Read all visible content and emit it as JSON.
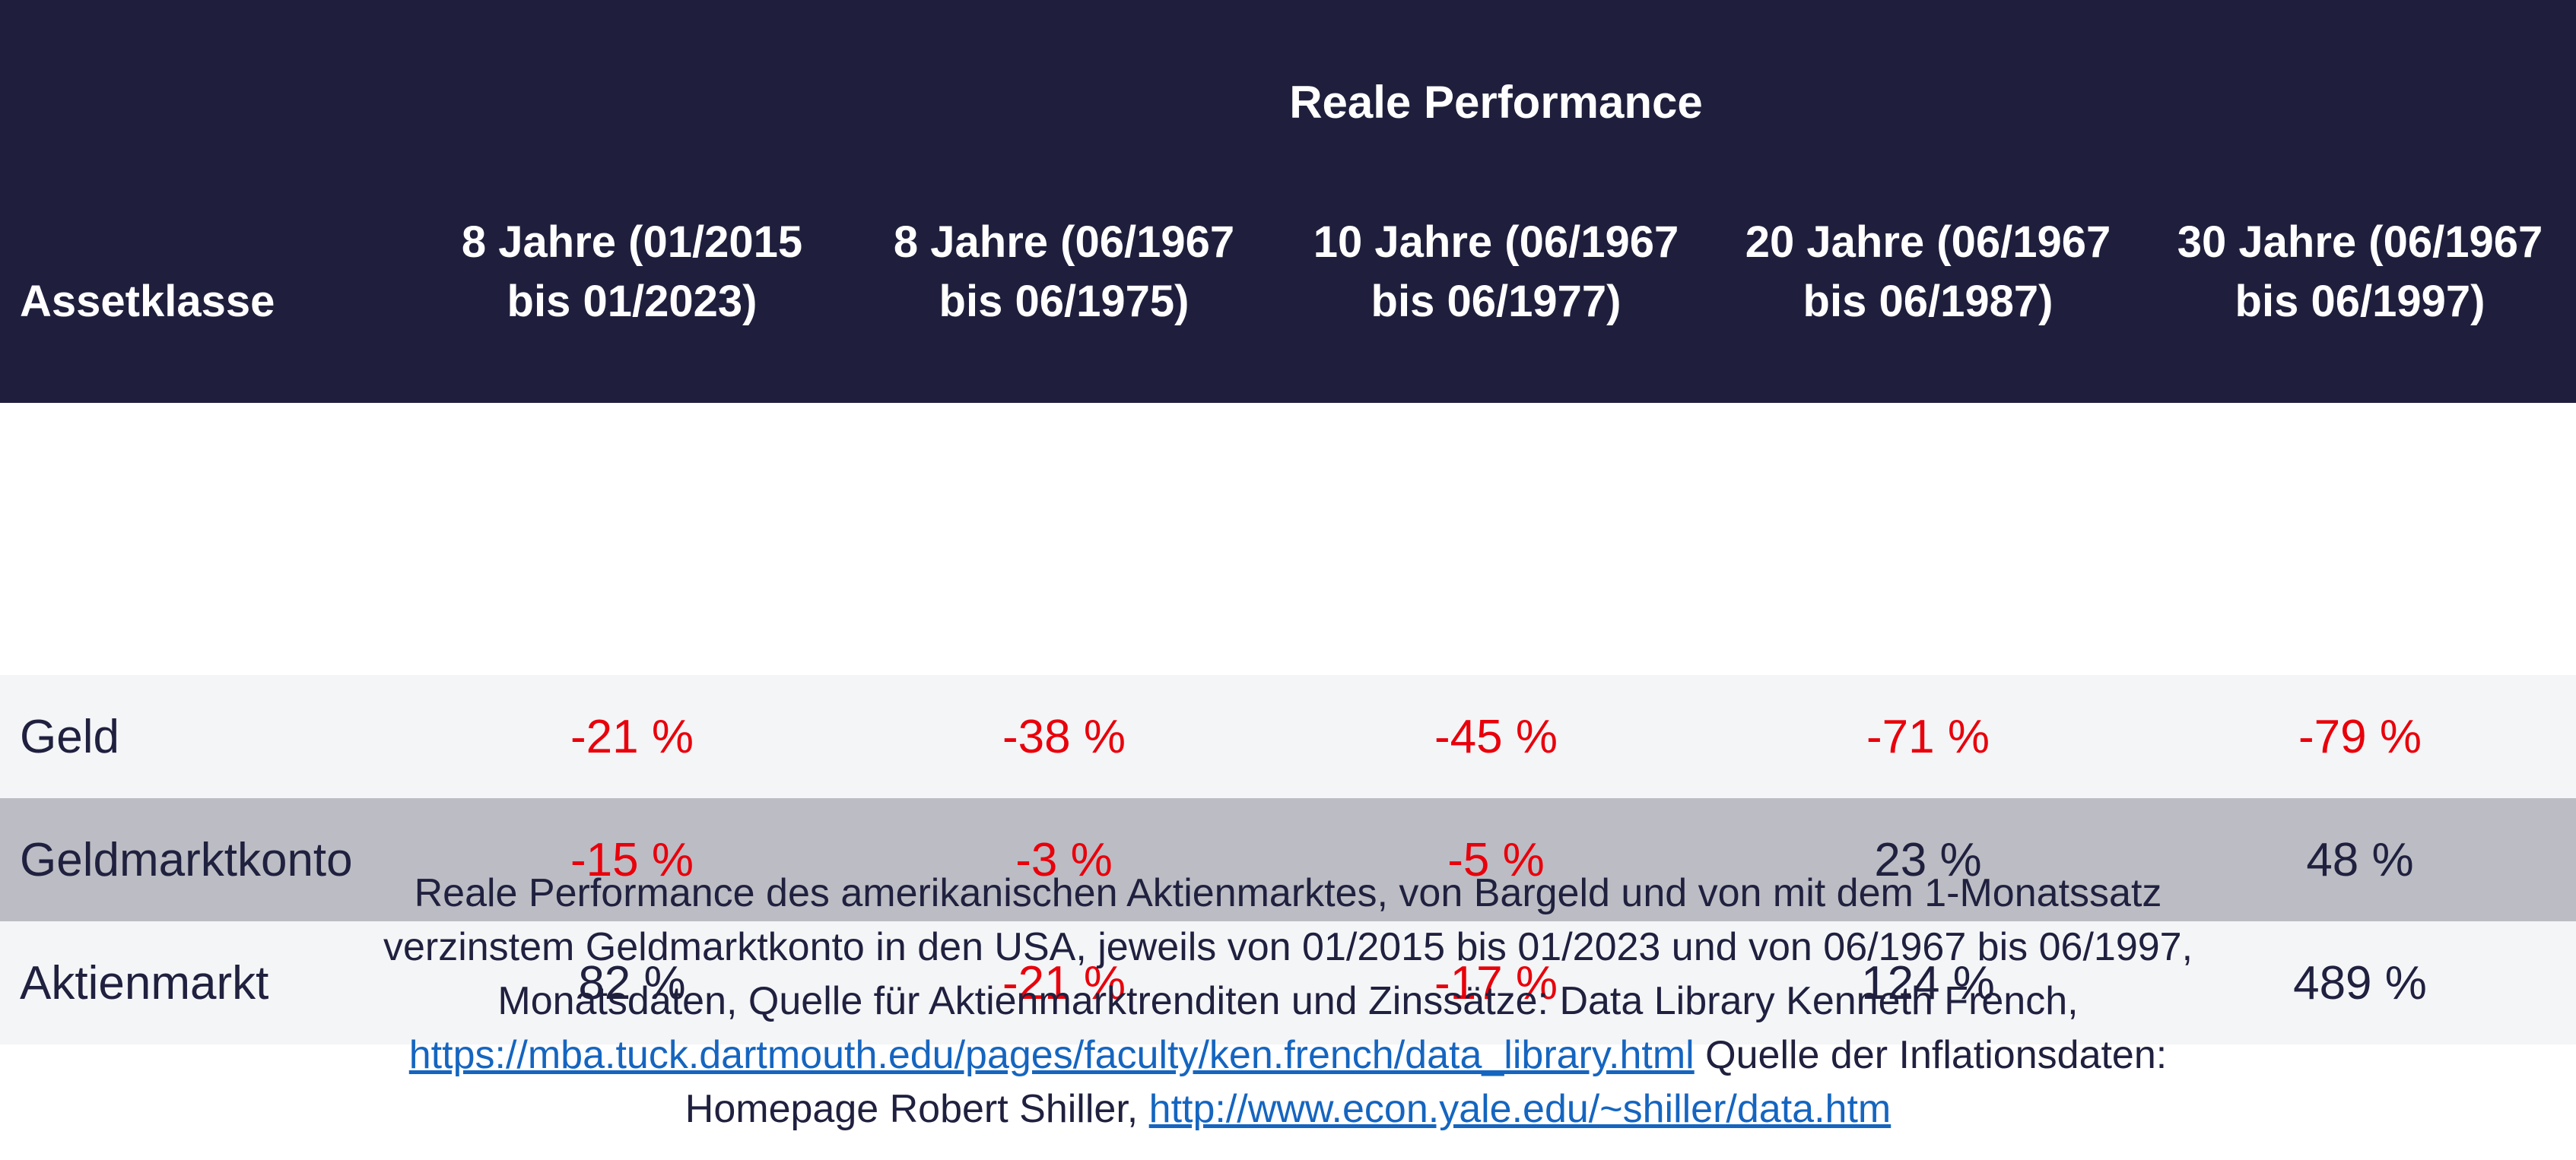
{
  "table": {
    "title": "Reale Performance",
    "columns": [
      [
        "Assetklasse"
      ],
      [
        "8 Jahre (01/2015",
        "bis 01/2023)"
      ],
      [
        "8 Jahre (06/1967",
        "bis 06/1975)"
      ],
      [
        "10 Jahre (06/1967",
        "bis 06/1977)"
      ],
      [
        "20 Jahre (06/1967",
        "bis 06/1987)"
      ],
      [
        "30 Jahre (06/1967",
        "bis 06/1997)"
      ]
    ],
    "rows": [
      [
        "Geld",
        "-21 %",
        "-38 %",
        "-45 %",
        "-71 %",
        "-79 %"
      ],
      [
        "Geldmarktkonto",
        "-15 %",
        "-3 %",
        "-5 %",
        "23 %",
        "48 %"
      ],
      [
        "Aktienmarkt",
        "82 %",
        "-21 %",
        "-17 %",
        "124 %",
        "489 %"
      ]
    ]
  },
  "caption": {
    "text1": "Reale Performance des amerikanischen Aktienmarktes, von Bargeld und von mit dem 1-Monatssatz verzinstem Geldmarktkonto in den USA, jeweils von 01/2015 bis 01/2023 und von 06/1967 bis 06/1997, Monatsdaten, Quelle für Aktienmarktrenditen und Zinssätze: Data Library Kenneth French,",
    "link1": "https://mba.tuck.dartmouth.edu/pages/faculty/ken.french/data_library.html",
    "text2": "Quelle der Inflationsdaten: Homepage Robert Shiller,",
    "link2": "http://www.econ.yale.edu/~shiller/data.htm"
  }
}
